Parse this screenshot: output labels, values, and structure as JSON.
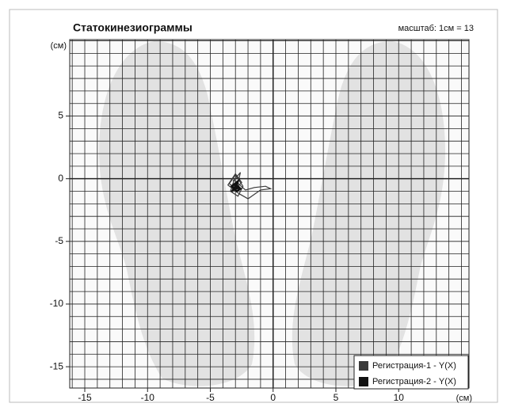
{
  "chart_data": {
    "type": "line",
    "title": "Статокинезиограммы",
    "subtitle": "масштаб: 1см = 13",
    "xlabel": "(см)",
    "ylabel": "(см)",
    "xlim": [
      -16.2,
      15.6
    ],
    "ylim": [
      -16.7,
      11.1
    ],
    "xticks": [
      -15,
      -10,
      -5,
      0,
      5,
      10
    ],
    "yticks": [
      -15,
      -10,
      -5,
      0,
      5
    ],
    "xminorticks": [
      -16,
      -15,
      -14,
      -13,
      -12,
      -11,
      -10,
      -9,
      -8,
      -7,
      -6,
      -5,
      -4,
      -3,
      -2,
      -1,
      0,
      1,
      2,
      3,
      4,
      5,
      6,
      7,
      8,
      9,
      10,
      11,
      12,
      13,
      14,
      15
    ],
    "yminorticks": [
      -16,
      -15,
      -14,
      -13,
      -12,
      -11,
      -10,
      -9,
      -8,
      -7,
      -6,
      -5,
      -4,
      -3,
      -2,
      -1,
      0,
      1,
      2,
      3,
      4,
      5,
      6,
      7,
      8,
      9,
      10,
      11
    ],
    "grid": true,
    "legend": "lower right",
    "series": [
      {
        "name": "Регистрация-1 - Y(X)",
        "color": "#3a3a3a",
        "x": [
          -3.2,
          -2.6,
          -2.9,
          -3.5,
          -3.0,
          -2.4,
          -2.8,
          -3.4,
          -3.1,
          -2.2,
          -1.5,
          -0.6,
          -0.2,
          -1.0,
          -2.0,
          -2.7,
          -3.6,
          -3.0,
          -2.5,
          -3.3,
          -2.9
        ],
        "values": [
          -0.2,
          0.5,
          -0.8,
          -0.4,
          0.3,
          -0.6,
          -1.4,
          -1.0,
          -0.1,
          -0.9,
          -0.7,
          -0.6,
          -0.8,
          -0.9,
          -1.6,
          -1.2,
          -0.5,
          0.4,
          -0.3,
          -1.1,
          -0.6
        ]
      },
      {
        "name": "Регистрация-2 - Y(X)",
        "color": "#111111",
        "x": [
          -3.0,
          -2.7,
          -3.2,
          -2.8,
          -3.1,
          -2.6,
          -2.9,
          -3.3,
          -2.8,
          -3.0
        ],
        "values": [
          -0.4,
          -0.7,
          -0.9,
          -0.3,
          -0.5,
          -0.8,
          -1.0,
          -0.6,
          -0.2,
          -0.7
        ]
      }
    ]
  }
}
